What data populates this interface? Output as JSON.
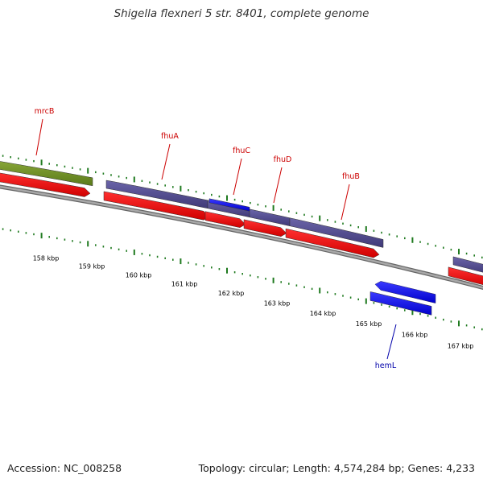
{
  "title": "Shigella flexneri 5 str. 8401, complete genome",
  "footer": {
    "accession": "Accession: NC_008258",
    "summary": "Topology: circular; Length: 4,574,284 bp; Genes: 4,233"
  },
  "colors": {
    "forward_gene": "#4b4589",
    "forward_gene_highlight": "#1010e0",
    "cds": "#ee0000",
    "rna_like": "#6b8a23",
    "backbone": "#888888",
    "ticks": "#1f7a1f",
    "label_forward": "#cc0000",
    "label_reverse": "#0000aa"
  },
  "ticks": [
    {
      "label": "158 kbp"
    },
    {
      "label": "159 kbp"
    },
    {
      "label": "160 kbp"
    },
    {
      "label": "161 kbp"
    },
    {
      "label": "162 kbp"
    },
    {
      "label": "163 kbp"
    },
    {
      "label": "164 kbp"
    },
    {
      "label": "165 kbp"
    },
    {
      "label": "166 kbp"
    },
    {
      "label": "167 kbp"
    }
  ],
  "genes": [
    {
      "name": "mrcB",
      "strand": "forward"
    },
    {
      "name": "fhuA",
      "strand": "forward"
    },
    {
      "name": "fhuC",
      "strand": "forward"
    },
    {
      "name": "fhuD",
      "strand": "forward"
    },
    {
      "name": "fhuB",
      "strand": "forward"
    },
    {
      "name": "hemL",
      "strand": "reverse"
    }
  ]
}
